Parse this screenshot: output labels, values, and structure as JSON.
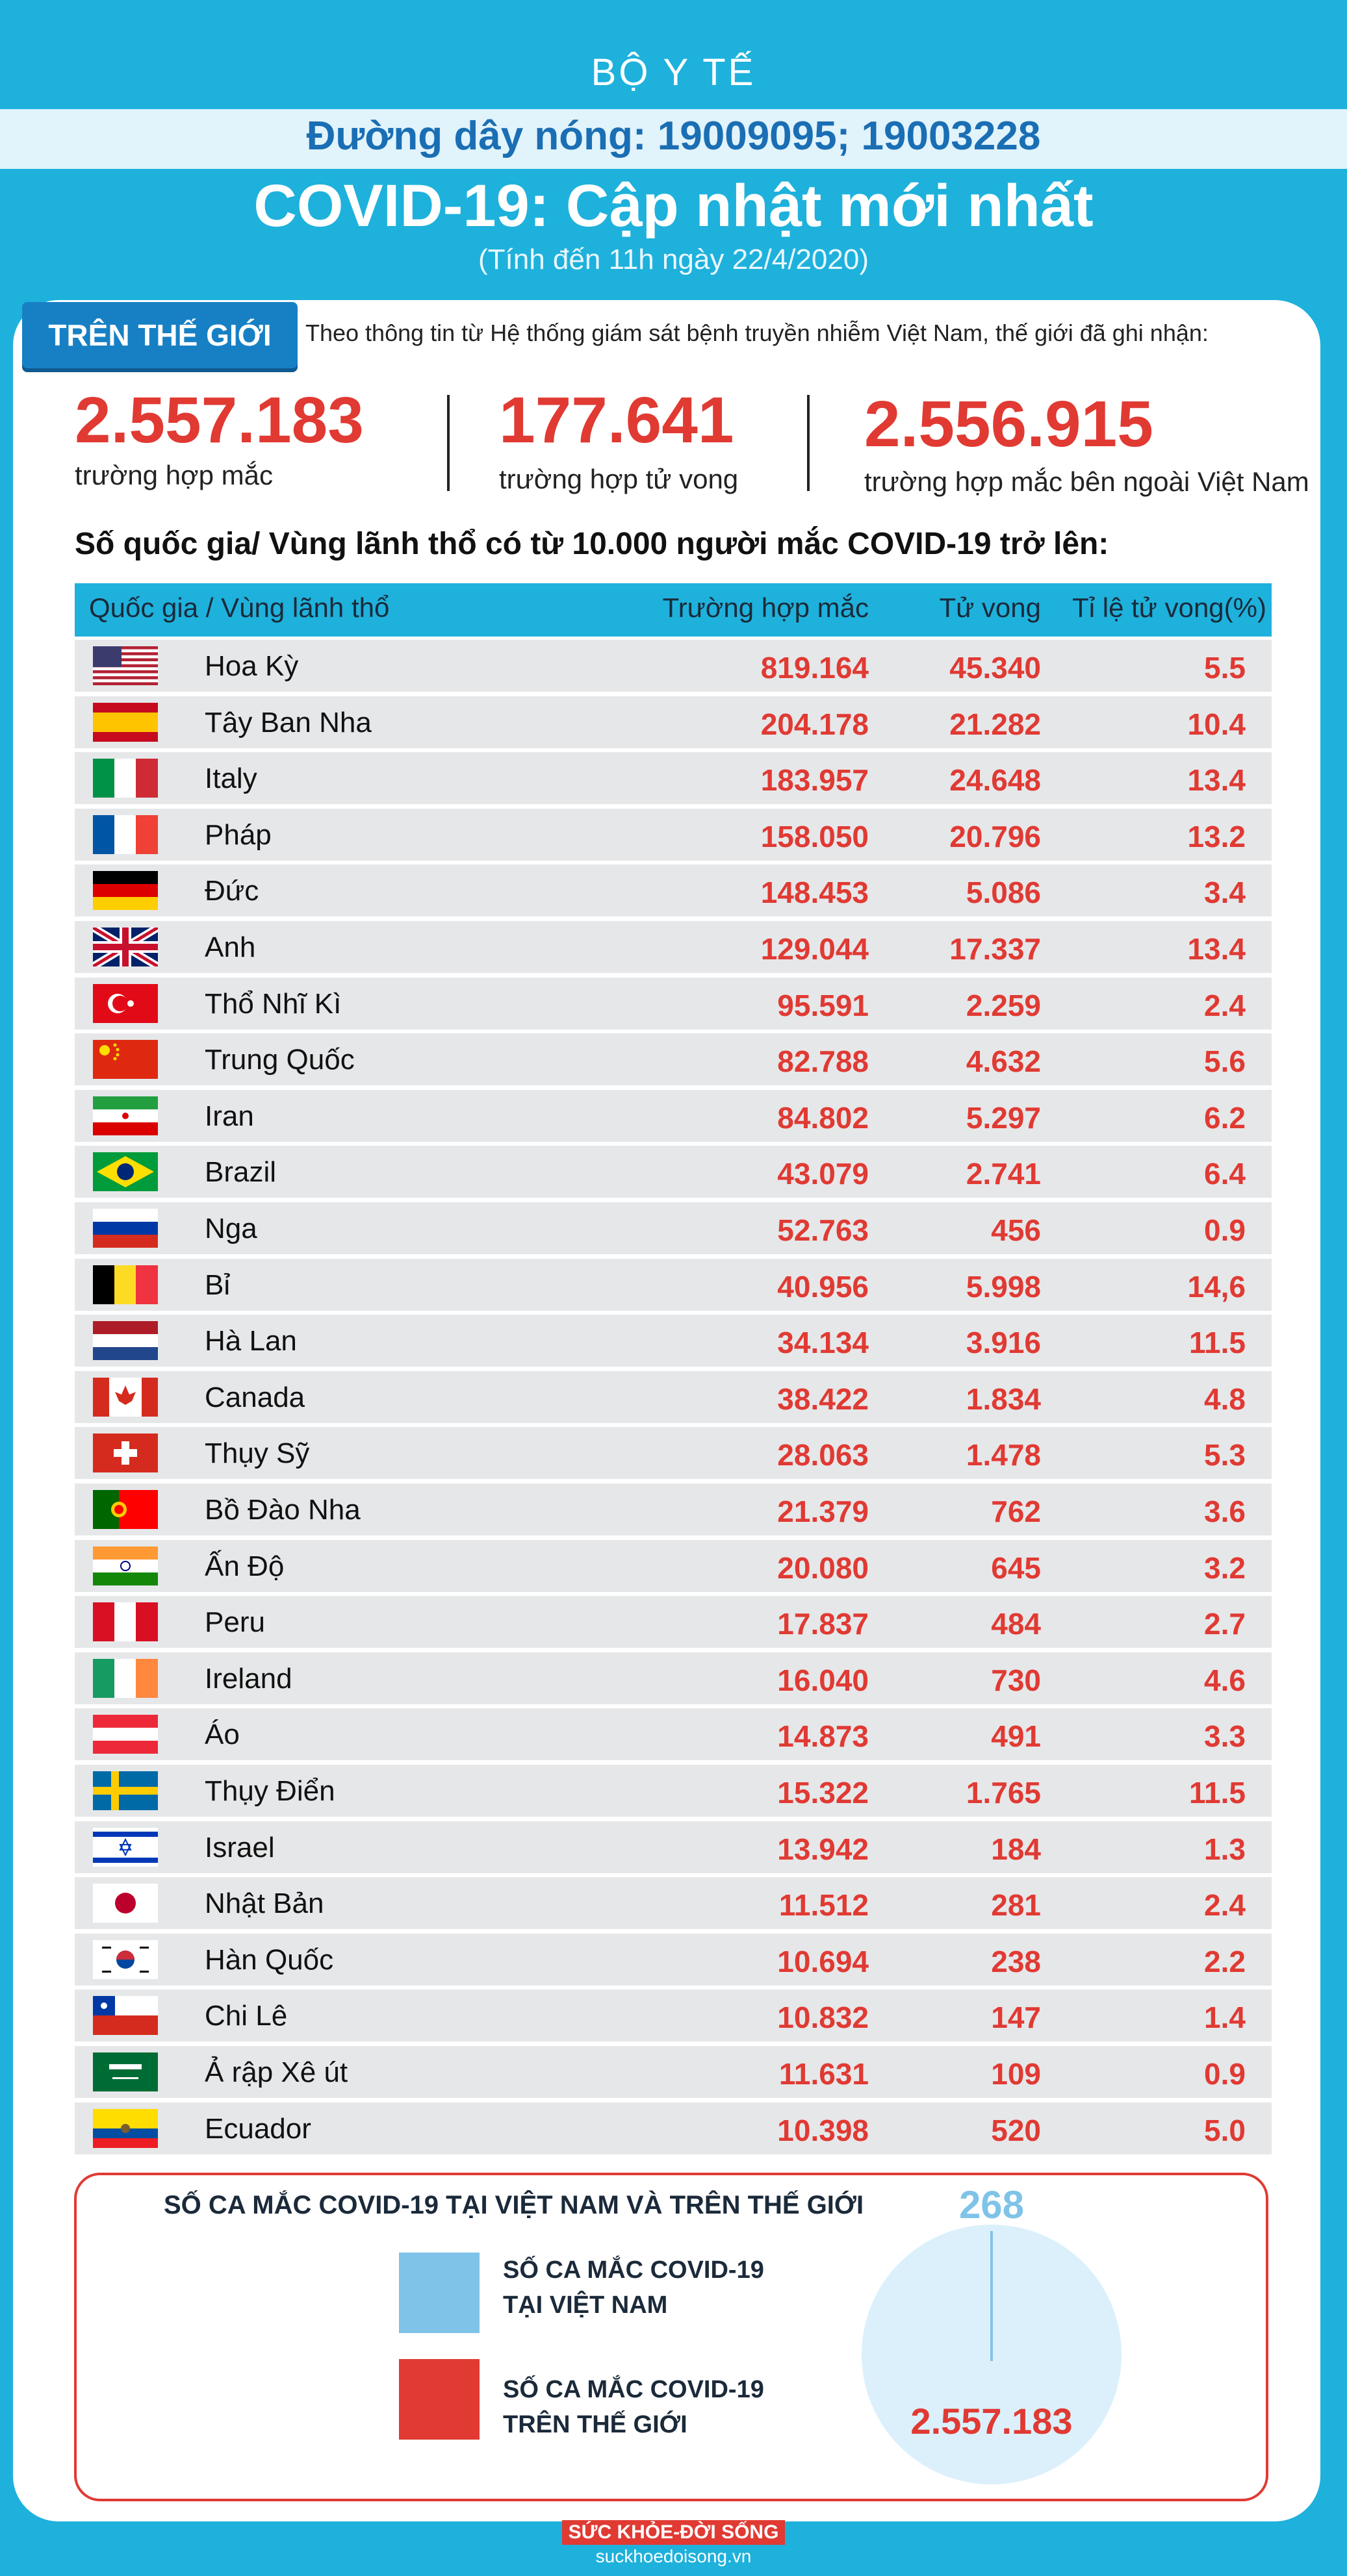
{
  "header": {
    "org": "BỘ Y TẾ",
    "hotline": "Đường dây nóng: 19009095; 19003228",
    "title": "COVID-19: Cập nhật mới nhất",
    "subtitle": "(Tính đến 11h ngày 22/4/2020)"
  },
  "world": {
    "tag": "TRÊN THẾ GIỚI",
    "intro": "Theo thông tin từ Hệ thống giám sát bệnh truyền nhiễm Việt Nam, thế giới đã ghi nhận:",
    "stats": [
      {
        "value": "2.557.183",
        "label": "trường hợp mắc"
      },
      {
        "value": "177.641",
        "label": "trường hợp tử vong"
      },
      {
        "value": "2.556.915",
        "label": "trường hợp  mắc bên ngoài Việt Nam"
      }
    ]
  },
  "table": {
    "heading": "Số quốc gia/ Vùng lãnh thổ có từ 10.000 người  mắc COVID-19 trở lên:",
    "headers": [
      "Quốc gia / Vùng lãnh thổ",
      "Trường hợp mắc",
      "Tử vong",
      "Tỉ lệ tử vong(%)"
    ],
    "rows": [
      {
        "name": "Hoa Kỳ",
        "cases": "819.164",
        "deaths": "45.340",
        "rate": "5.5",
        "flag": "us-flag"
      },
      {
        "name": "Tây Ban Nha",
        "cases": "204.178",
        "deaths": "21.282",
        "rate": "10.4",
        "flag": "spain-flag"
      },
      {
        "name": "Italy",
        "cases": "183.957",
        "deaths": "24.648",
        "rate": "13.4",
        "flag": "italy-flag"
      },
      {
        "name": "Pháp",
        "cases": "158.050",
        "deaths": "20.796",
        "rate": "13.2",
        "flag": "france-flag"
      },
      {
        "name": "Đức",
        "cases": "148.453",
        "deaths": "5.086",
        "rate": "3.4",
        "flag": "germany-flag"
      },
      {
        "name": "Anh",
        "cases": "129.044",
        "deaths": "17.337",
        "rate": "13.4",
        "flag": "uk-flag"
      },
      {
        "name": "Thổ Nhĩ Kì",
        "cases": "95.591",
        "deaths": "2.259",
        "rate": "2.4",
        "flag": "turkey-flag"
      },
      {
        "name": "Trung Quốc",
        "cases": "82.788",
        "deaths": "4.632",
        "rate": "5.6",
        "flag": "china-flag"
      },
      {
        "name": "Iran",
        "cases": "84.802",
        "deaths": "5.297",
        "rate": "6.2",
        "flag": "iran-flag"
      },
      {
        "name": "Brazil",
        "cases": "43.079",
        "deaths": "2.741",
        "rate": "6.4",
        "flag": "brazil-flag"
      },
      {
        "name": "Nga",
        "cases": "52.763",
        "deaths": "456",
        "rate": "0.9",
        "flag": "russia-flag"
      },
      {
        "name": "Bỉ",
        "cases": "40.956",
        "deaths": "5.998",
        "rate": "14,6",
        "flag": "belgium-flag"
      },
      {
        "name": "Hà Lan",
        "cases": "34.134",
        "deaths": "3.916",
        "rate": "11.5",
        "flag": "netherlands-flag"
      },
      {
        "name": "Canada",
        "cases": "38.422",
        "deaths": "1.834",
        "rate": "4.8",
        "flag": "canada-flag"
      },
      {
        "name": "Thụy Sỹ",
        "cases": "28.063",
        "deaths": "1.478",
        "rate": "5.3",
        "flag": "switzerland-flag"
      },
      {
        "name": "Bồ Đào Nha",
        "cases": "21.379",
        "deaths": "762",
        "rate": "3.6",
        "flag": "portugal-flag"
      },
      {
        "name": "Ấn Độ",
        "cases": "20.080",
        "deaths": "645",
        "rate": "3.2",
        "flag": "india-flag"
      },
      {
        "name": "Peru",
        "cases": "17.837",
        "deaths": "484",
        "rate": "2.7",
        "flag": "peru-flag"
      },
      {
        "name": "Ireland",
        "cases": "16.040",
        "deaths": "730",
        "rate": "4.6",
        "flag": "ireland-flag"
      },
      {
        "name": "Áo",
        "cases": "14.873",
        "deaths": "491",
        "rate": "3.3",
        "flag": "austria-flag"
      },
      {
        "name": "Thụy Điển",
        "cases": "15.322",
        "deaths": "1.765",
        "rate": "11.5",
        "flag": "sweden-flag"
      },
      {
        "name": "Israel",
        "cases": "13.942",
        "deaths": "184",
        "rate": "1.3",
        "flag": "israel-flag"
      },
      {
        "name": "Nhật Bản",
        "cases": "11.512",
        "deaths": "281",
        "rate": "2.4",
        "flag": "japan-flag"
      },
      {
        "name": "Hàn Quốc",
        "cases": "10.694",
        "deaths": "238",
        "rate": "2.2",
        "flag": "korea-flag"
      },
      {
        "name": "Chi Lê",
        "cases": "10.832",
        "deaths": "147",
        "rate": "1.4",
        "flag": "chile-flag"
      },
      {
        "name": "Ả rập Xê út",
        "cases": "11.631",
        "deaths": "109",
        "rate": "0.9",
        "flag": "saudi-flag"
      },
      {
        "name": "Ecuador",
        "cases": "10.398",
        "deaths": "520",
        "rate": "5.0",
        "flag": "ecuador-flag"
      }
    ]
  },
  "comparison": {
    "title": "SỐ CA MẮC COVID-19 TẠI VIỆT NAM VÀ TRÊN THẾ GIỚI",
    "legend_vn": [
      "SỐ CA MẮC COVID-19",
      "TẠI VIỆT NAM"
    ],
    "legend_world": [
      "SỐ CA MẮC COVID-19",
      "TRÊN THẾ GIỚI"
    ],
    "vn_value": "268",
    "world_value": "2.557.183",
    "vn_color": "#7fc3e8",
    "world_color": "#e03a33"
  },
  "chart_data": {
    "type": "pie",
    "title": "SỐ CA MẮC COVID-19 TẠI VIỆT NAM VÀ TRÊN THẾ GIỚI",
    "categories": [
      "SỐ CA MẮC COVID-19 TẠI VIỆT NAM",
      "SỐ CA MẮC COVID-19 TRÊN THẾ GIỚI"
    ],
    "values": [
      268,
      2557183
    ]
  },
  "footer": {
    "logo": "SỨC KHỎE-ĐỜI SỐNG",
    "url": "suckhoedoisong.vn"
  }
}
